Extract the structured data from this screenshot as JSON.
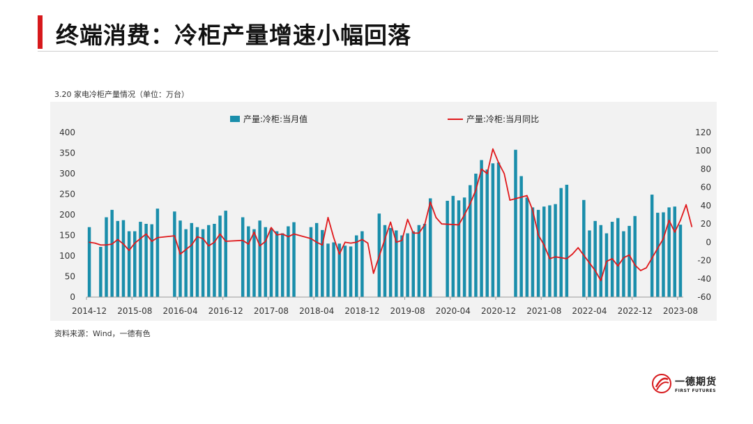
{
  "header": {
    "title": "终端消费：冷柜产量增速小幅回落"
  },
  "caption": "3.20 家电冷柜产量情况（单位：万台）",
  "source": "资料来源：Wind，一德有色",
  "logo": {
    "cn": "一德期货",
    "en": "FIRST FUTURES"
  },
  "colors": {
    "accent": "#d7191c",
    "bar": "#1a8eab",
    "line": "#e0181b",
    "panel": "#f2f2f2"
  },
  "chart_data": {
    "type": "bar+line",
    "title": "",
    "x_tick_labels": [
      "2014-12",
      "2015-08",
      "2016-04",
      "2016-12",
      "2017-08",
      "2018-04",
      "2018-12",
      "2019-08",
      "2020-04",
      "2020-12",
      "2021-08",
      "2022-04",
      "2022-12",
      "2023-08"
    ],
    "y_left": {
      "ticks": [
        0,
        50,
        100,
        150,
        200,
        250,
        300,
        350,
        400
      ],
      "ylim": [
        0,
        400
      ]
    },
    "y_right": {
      "ticks": [
        -60,
        -40,
        -20,
        0,
        20,
        40,
        60,
        80,
        100,
        120
      ],
      "ylim": [
        -60,
        120
      ]
    },
    "legend": {
      "placement": "top",
      "entries": [
        "产量:冷柜:当月值",
        "产量:冷柜:当月同比"
      ]
    },
    "grid": false,
    "months_start": "2014-12",
    "series": [
      {
        "name": "产量:冷柜:当月值",
        "type": "bar",
        "axis": "left",
        "values": [
          170,
          null,
          122,
          194,
          212,
          185,
          187,
          160,
          160,
          183,
          178,
          177,
          215,
          null,
          null,
          208,
          186,
          165,
          180,
          170,
          165,
          175,
          178,
          198,
          210,
          null,
          null,
          194,
          172,
          165,
          186,
          170,
          167,
          160,
          155,
          172,
          182,
          null,
          null,
          170,
          180,
          163,
          130,
          133,
          130,
          125,
          123,
          150,
          160,
          null,
          null,
          203,
          175,
          168,
          162,
          150,
          155,
          160,
          175,
          178,
          240,
          null,
          null,
          234,
          246,
          235,
          242,
          272,
          300,
          333,
          310,
          325,
          327,
          null,
          null,
          358,
          294,
          242,
          218,
          212,
          220,
          223,
          226,
          265,
          273,
          null,
          null,
          236,
          162,
          185,
          175,
          155,
          183,
          192,
          160,
          173,
          197,
          null,
          null,
          249,
          205,
          206,
          218,
          220,
          176
        ],
        "unit": "万台"
      },
      {
        "name": "产量:冷柜:当月同比",
        "type": "line",
        "axis": "right",
        "values": [
          0,
          -1,
          -3,
          -3,
          -2,
          3,
          -2,
          -9,
          -1,
          4,
          9,
          1,
          5,
          null,
          null,
          7,
          -13,
          -8,
          -3,
          6,
          4,
          -4,
          0,
          9,
          1,
          null,
          null,
          2,
          -2,
          11,
          -4,
          1,
          16,
          8,
          9,
          6,
          9,
          null,
          null,
          4,
          0,
          -3,
          27,
          5,
          -13,
          0,
          -1,
          0,
          3,
          -1,
          -34,
          null,
          null,
          22,
          0,
          2,
          25,
          10,
          10,
          19,
          44,
          27,
          20,
          null,
          null,
          19,
          30,
          42,
          57,
          80,
          75,
          102,
          87,
          75,
          46,
          null,
          null,
          51,
          35,
          8,
          -3,
          -18,
          -16,
          -17,
          -18,
          -13,
          -6,
          null,
          null,
          -31,
          -42,
          -21,
          -18,
          -26,
          -17,
          -14,
          -25,
          -31,
          -28,
          null,
          null,
          4,
          24,
          11,
          24,
          41,
          17
        ],
        "unit": "%"
      }
    ]
  }
}
